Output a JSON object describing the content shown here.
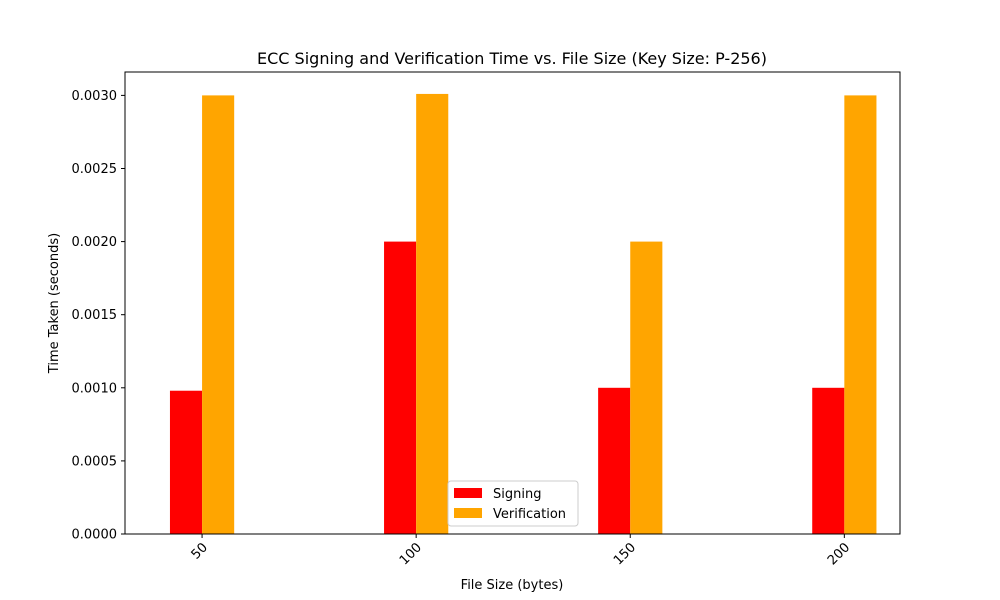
{
  "chart_data": {
    "type": "bar",
    "title": "ECC Signing and Verification Time vs. File Size (Key Size: P-256)",
    "xlabel": "File Size (bytes)",
    "ylabel": "Time Taken (seconds)",
    "x": [
      50,
      100,
      150,
      200
    ],
    "x_tick_labels": [
      "50",
      "100",
      "150",
      "200"
    ],
    "xlim": [
      32,
      213
    ],
    "ylim": [
      0,
      0.00316
    ],
    "y_ticks": [
      0,
      0.0005,
      0.001,
      0.0015,
      0.002,
      0.0025,
      0.003
    ],
    "y_tick_labels": [
      "0.0000",
      "0.0005",
      "0.0010",
      "0.0015",
      "0.0020",
      "0.0025",
      "0.0030"
    ],
    "bar_width": 7.5,
    "series": [
      {
        "name": "Signing",
        "color": "#ff0000",
        "values": [
          0.00098,
          0.002,
          0.001,
          0.001
        ]
      },
      {
        "name": "Verification",
        "color": "#ffa500",
        "values": [
          0.003,
          0.00301,
          0.002,
          0.003
        ]
      }
    ],
    "legend_position": "lower center",
    "grid": false
  }
}
